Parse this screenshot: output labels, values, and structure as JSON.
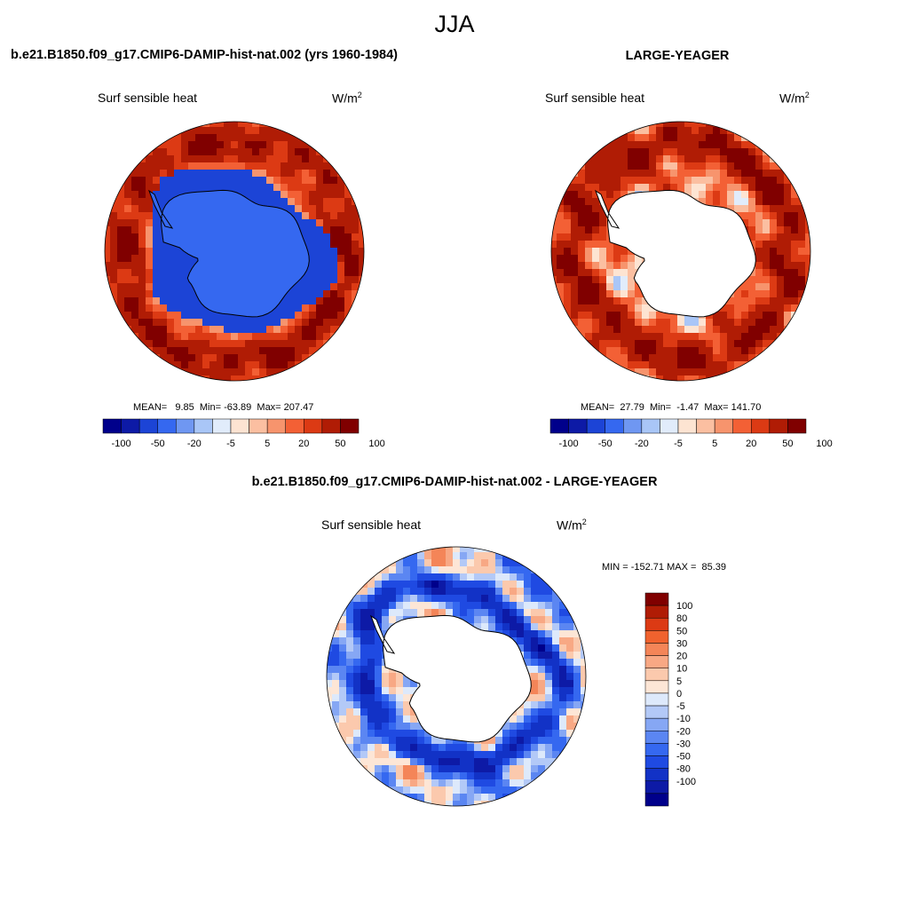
{
  "figure": {
    "season": "JJA",
    "panel_left_title": "b.e21.B1850.f09_g17.CMIP6-DAMIP-hist-nat.002 (yrs 1960-1984)",
    "panel_right_title": "LARGE-YEAGER",
    "panel_diff_title": "b.e21.B1850.f09_g17.CMIP6-DAMIP-hist-nat.002 - LARGE-YEAGER"
  },
  "colors": {
    "main_scale": [
      "#00008b",
      "#0d1aa6",
      "#1c44d6",
      "#3568f0",
      "#6f97f2",
      "#a9c6f7",
      "#e1ecfb",
      "#fde4d2",
      "#fbbfa1",
      "#f7946d",
      "#f36035",
      "#dc3a14",
      "#b01c05",
      "#800000"
    ],
    "diff_scale": [
      "#00008b",
      "#0d1aa6",
      "#1232c6",
      "#1f4ae2",
      "#3568f0",
      "#5b86f2",
      "#86a7f4",
      "#b3c9f7",
      "#dde9fb",
      "#fde6d6",
      "#fbc9ad",
      "#f8a884",
      "#f48558",
      "#f0622e",
      "#dc3a14",
      "#b01c05",
      "#800000"
    ],
    "land": "#ffffff",
    "coast": "#000000"
  },
  "chart_data": [
    {
      "type": "heatmap",
      "projection": "south-polar-stereographic",
      "variable": "Surf sensible heat",
      "units": "W/m",
      "units_sup": "2",
      "stats_text": "MEAN=   9.85  Min= -63.89  Max= 207.47",
      "mean": 9.85,
      "min": -63.89,
      "max": 207.47,
      "levels": [
        -100,
        -80,
        -50,
        -30,
        -20,
        -10,
        -5,
        0,
        5,
        10,
        20,
        30,
        50,
        80,
        100
      ],
      "colorbar_tick_labels": [
        "-100",
        "-50",
        "-20",
        "-5",
        "5",
        "20",
        "50",
        "100"
      ],
      "land_value": -60,
      "land_masked": false
    },
    {
      "type": "heatmap",
      "projection": "south-polar-stereographic",
      "variable": "Surf sensible heat",
      "units": "W/m",
      "units_sup": "2",
      "stats_text": "MEAN=  27.79  Min=  -1.47  Max= 141.70",
      "mean": 27.79,
      "min": -1.47,
      "max": 141.7,
      "levels": [
        -100,
        -80,
        -50,
        -30,
        -20,
        -10,
        -5,
        0,
        5,
        10,
        20,
        30,
        50,
        80,
        100
      ],
      "colorbar_tick_labels": [
        "-100",
        "-50",
        "-20",
        "-5",
        "5",
        "20",
        "50",
        "100"
      ],
      "land_masked": true
    },
    {
      "type": "heatmap",
      "projection": "south-polar-stereographic",
      "variable": "Surf sensible heat",
      "units": "W/m",
      "units_sup": "2",
      "stats_text": "MIN = -152.71 MAX =  85.39",
      "min": -152.71,
      "max": 85.39,
      "levels": [
        -100,
        -80,
        -50,
        -30,
        -20,
        -10,
        -5,
        0,
        5,
        10,
        20,
        30,
        50,
        80,
        100
      ],
      "colorbar_tick_labels": [
        "100",
        "80",
        "50",
        "30",
        "20",
        "10",
        "5",
        "0",
        "-5",
        "-10",
        "-20",
        "-30",
        "-50",
        "-80",
        "-100"
      ],
      "land_masked": true
    }
  ]
}
